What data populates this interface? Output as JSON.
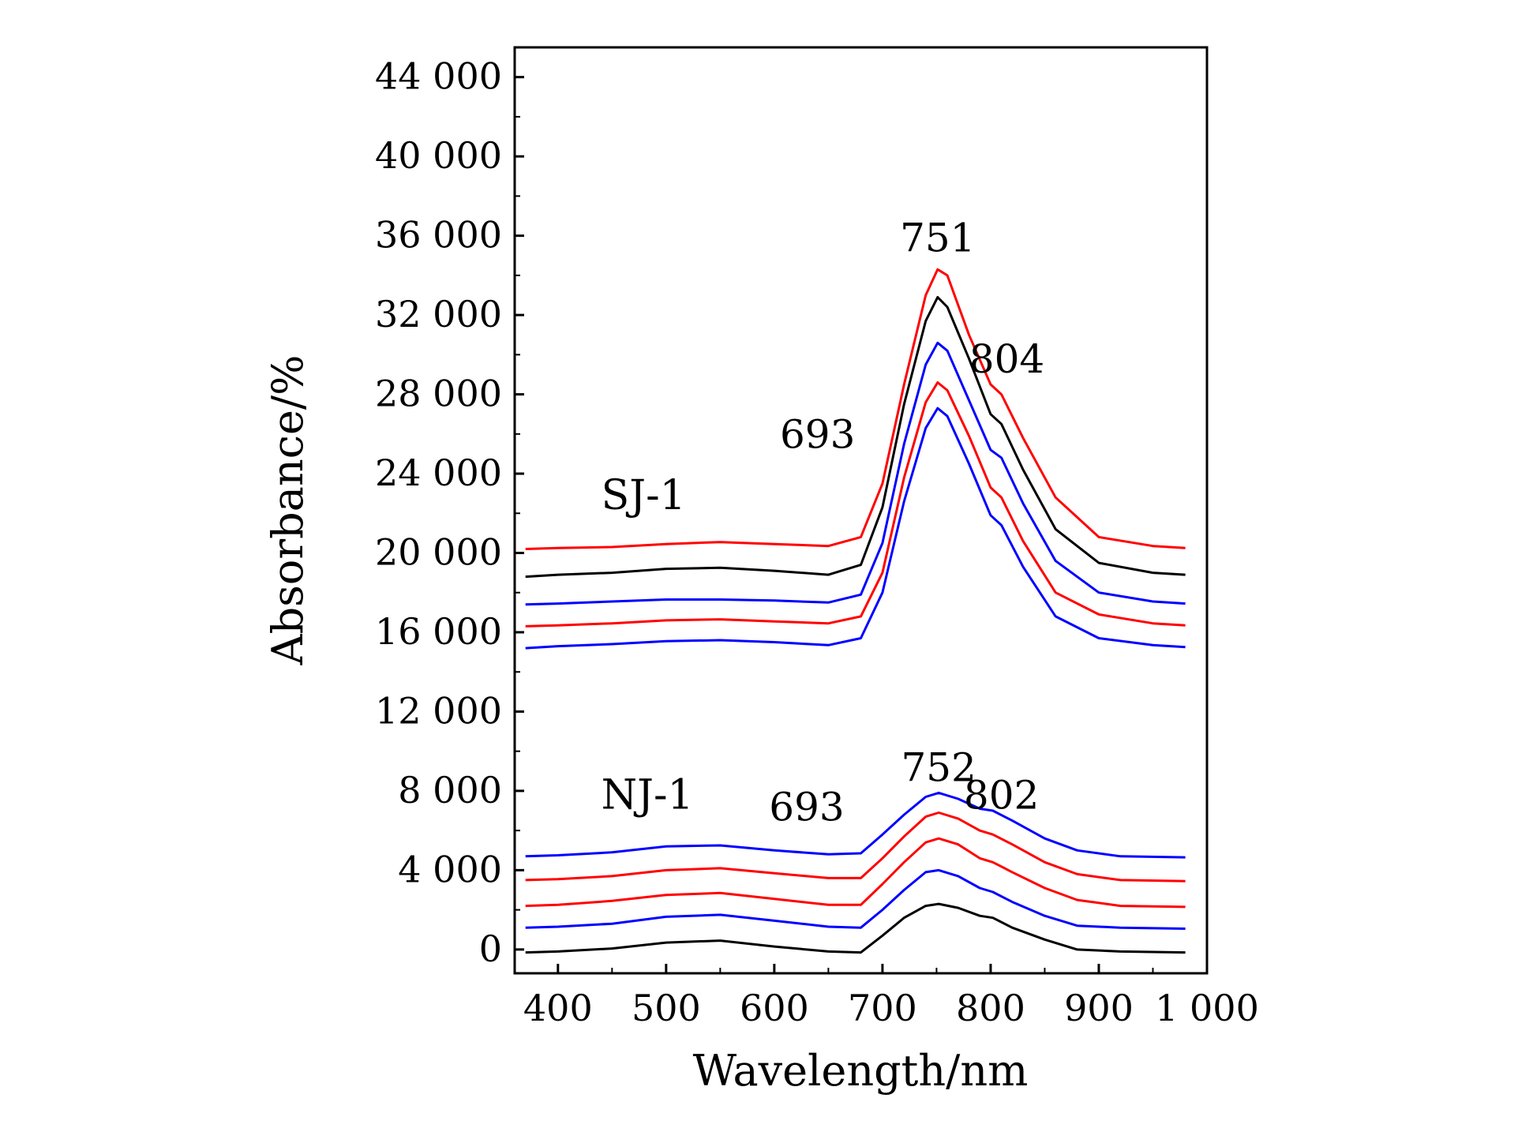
{
  "chart_data": {
    "type": "line",
    "title": "",
    "xlabel": "Wavelength/nm",
    "ylabel": "Absorbance/%",
    "xlim": [
      360,
      1000
    ],
    "ylim": [
      -1200,
      45500
    ],
    "x_ticks": [
      400,
      500,
      600,
      700,
      800,
      900,
      1000
    ],
    "x_tick_labels": [
      "400",
      "500",
      "600",
      "700",
      "800",
      "900",
      "1 000"
    ],
    "x_minor_step": 50,
    "y_ticks": [
      0,
      4000,
      8000,
      12000,
      16000,
      20000,
      24000,
      28000,
      32000,
      36000,
      40000,
      44000
    ],
    "y_tick_labels": [
      "0",
      "4 000",
      "8 000",
      "12 000",
      "16 000",
      "20 000",
      "24 000",
      "28 000",
      "32 000",
      "36 000",
      "40 000",
      "44 000"
    ],
    "y_minor_step": 2000,
    "grid": false,
    "legend": "none",
    "group_labels": [
      {
        "text": "SJ-1",
        "x": 440,
        "y": 22200
      },
      {
        "text": "NJ-1",
        "x": 440,
        "y": 7100
      }
    ],
    "annotations": [
      {
        "text": "751",
        "x": 751,
        "y": 35200
      },
      {
        "text": "804",
        "x": 815,
        "y": 29100
      },
      {
        "text": "693",
        "x": 640,
        "y": 25300
      },
      {
        "text": "752",
        "x": 752,
        "y": 8500
      },
      {
        "text": "802",
        "x": 810,
        "y": 7100
      },
      {
        "text": "693",
        "x": 630,
        "y": 6500
      }
    ],
    "series": [
      {
        "color": "#ff0000",
        "x": [
          370,
          400,
          450,
          500,
          550,
          600,
          650,
          680,
          700,
          720,
          740,
          751,
          760,
          780,
          800,
          810,
          830,
          860,
          900,
          950,
          980
        ],
        "y": [
          20200,
          20250,
          20300,
          20450,
          20550,
          20450,
          20350,
          20800,
          23500,
          28500,
          33000,
          34300,
          34000,
          31000,
          28500,
          28000,
          25800,
          22800,
          20800,
          20350,
          20250
        ]
      },
      {
        "color": "#000000",
        "x": [
          370,
          400,
          450,
          500,
          550,
          600,
          650,
          680,
          700,
          720,
          740,
          751,
          760,
          780,
          800,
          810,
          830,
          860,
          900,
          950,
          980
        ],
        "y": [
          18800,
          18900,
          19000,
          19200,
          19250,
          19100,
          18900,
          19400,
          22300,
          27500,
          31700,
          32900,
          32400,
          29800,
          27000,
          26500,
          24200,
          21200,
          19500,
          19000,
          18900
        ]
      },
      {
        "color": "#0000ff",
        "x": [
          370,
          400,
          450,
          500,
          550,
          600,
          650,
          680,
          700,
          720,
          740,
          751,
          760,
          780,
          800,
          810,
          830,
          860,
          900,
          950,
          980
        ],
        "y": [
          17400,
          17450,
          17550,
          17650,
          17650,
          17600,
          17500,
          17900,
          20500,
          25500,
          29500,
          30600,
          30200,
          27700,
          25200,
          24800,
          22500,
          19600,
          18000,
          17550,
          17450
        ]
      },
      {
        "color": "#ff0000",
        "x": [
          370,
          400,
          450,
          500,
          550,
          600,
          650,
          680,
          700,
          720,
          740,
          751,
          760,
          780,
          800,
          810,
          830,
          860,
          900,
          950,
          980
        ],
        "y": [
          16300,
          16350,
          16450,
          16600,
          16650,
          16550,
          16450,
          16800,
          19000,
          23800,
          27600,
          28600,
          28200,
          25900,
          23300,
          22800,
          20600,
          18000,
          16900,
          16450,
          16350
        ]
      },
      {
        "color": "#0000ff",
        "x": [
          370,
          400,
          450,
          500,
          550,
          600,
          650,
          680,
          700,
          720,
          740,
          751,
          760,
          780,
          800,
          810,
          830,
          860,
          900,
          950,
          980
        ],
        "y": [
          15200,
          15300,
          15400,
          15550,
          15600,
          15500,
          15350,
          15700,
          18000,
          22600,
          26300,
          27300,
          26900,
          24500,
          21900,
          21400,
          19300,
          16800,
          15700,
          15350,
          15250
        ]
      },
      {
        "color": "#0000ff",
        "x": [
          370,
          400,
          450,
          500,
          550,
          600,
          650,
          680,
          700,
          720,
          740,
          752,
          770,
          790,
          802,
          820,
          850,
          880,
          920,
          980
        ],
        "y": [
          4700,
          4750,
          4900,
          5200,
          5250,
          5000,
          4800,
          4850,
          5800,
          6800,
          7700,
          7900,
          7600,
          7100,
          7000,
          6500,
          5600,
          5000,
          4700,
          4650
        ]
      },
      {
        "color": "#ff0000",
        "x": [
          370,
          400,
          450,
          500,
          550,
          600,
          650,
          680,
          700,
          720,
          740,
          752,
          770,
          790,
          802,
          820,
          850,
          880,
          920,
          980
        ],
        "y": [
          3500,
          3550,
          3700,
          4000,
          4100,
          3850,
          3600,
          3600,
          4600,
          5700,
          6700,
          6900,
          6600,
          6000,
          5800,
          5300,
          4400,
          3800,
          3500,
          3450
        ]
      },
      {
        "color": "#ff0000",
        "x": [
          370,
          400,
          450,
          500,
          550,
          600,
          650,
          680,
          700,
          720,
          740,
          752,
          770,
          790,
          802,
          820,
          850,
          880,
          920,
          980
        ],
        "y": [
          2200,
          2250,
          2450,
          2750,
          2850,
          2550,
          2250,
          2250,
          3300,
          4400,
          5400,
          5600,
          5300,
          4600,
          4400,
          3900,
          3100,
          2500,
          2200,
          2150
        ]
      },
      {
        "color": "#0000ff",
        "x": [
          370,
          400,
          450,
          500,
          550,
          600,
          650,
          680,
          700,
          720,
          740,
          752,
          770,
          790,
          802,
          820,
          850,
          880,
          920,
          980
        ],
        "y": [
          1100,
          1150,
          1300,
          1650,
          1750,
          1450,
          1150,
          1100,
          2000,
          3000,
          3900,
          4000,
          3700,
          3100,
          2900,
          2400,
          1700,
          1200,
          1100,
          1050
        ]
      },
      {
        "color": "#000000",
        "x": [
          370,
          400,
          450,
          500,
          550,
          600,
          650,
          680,
          700,
          720,
          740,
          752,
          770,
          790,
          802,
          820,
          850,
          880,
          920,
          980
        ],
        "y": [
          -150,
          -100,
          50,
          350,
          450,
          150,
          -100,
          -150,
          700,
          1600,
          2200,
          2300,
          2100,
          1700,
          1600,
          1100,
          500,
          0,
          -100,
          -150
        ]
      }
    ]
  }
}
